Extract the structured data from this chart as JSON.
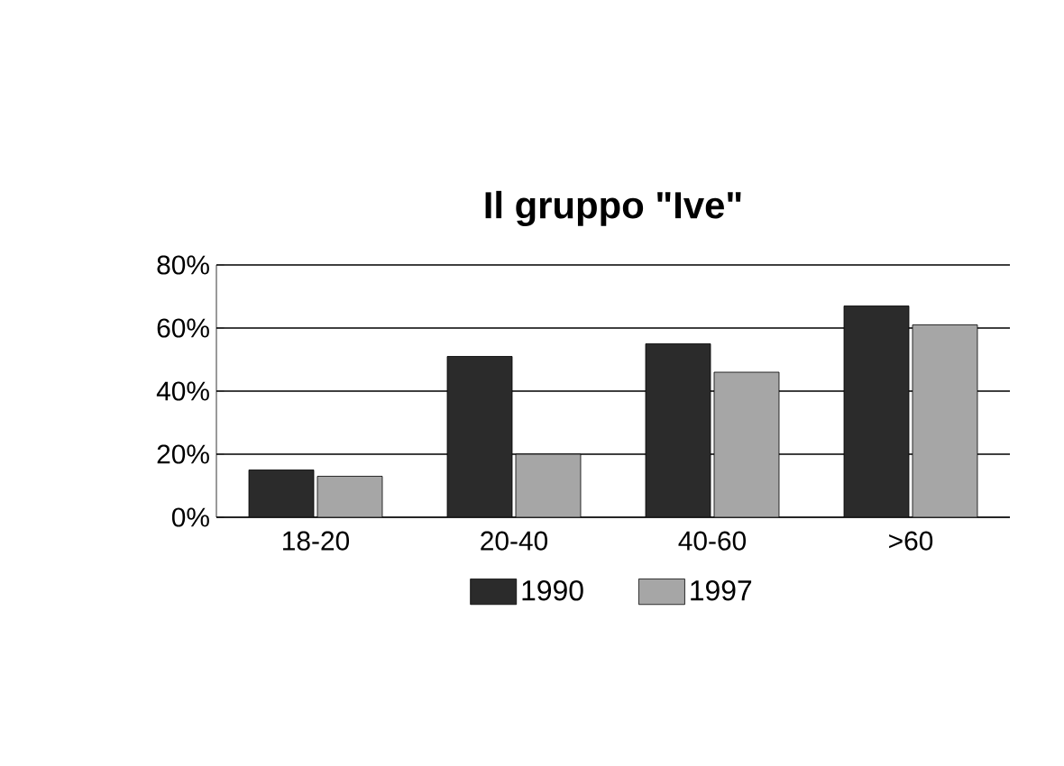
{
  "chart_data": {
    "type": "bar",
    "title": "Il gruppo \"Ive\"",
    "categories": [
      "18-20",
      "20-40",
      "40-60",
      ">60"
    ],
    "series": [
      {
        "name": "1990",
        "color": "#2b2b2b",
        "values": [
          15,
          51,
          55,
          67
        ]
      },
      {
        "name": "1997",
        "color": "#a6a6a6",
        "values": [
          13,
          20,
          46,
          61
        ]
      }
    ],
    "ylim": [
      0,
      80
    ],
    "yticks": [
      {
        "value": 0,
        "label": "0%"
      },
      {
        "value": 20,
        "label": "20%"
      },
      {
        "value": 40,
        "label": "40%"
      },
      {
        "value": 60,
        "label": "60%"
      },
      {
        "value": 80,
        "label": "80%"
      }
    ],
    "grid": "y",
    "legend": "bottom"
  }
}
